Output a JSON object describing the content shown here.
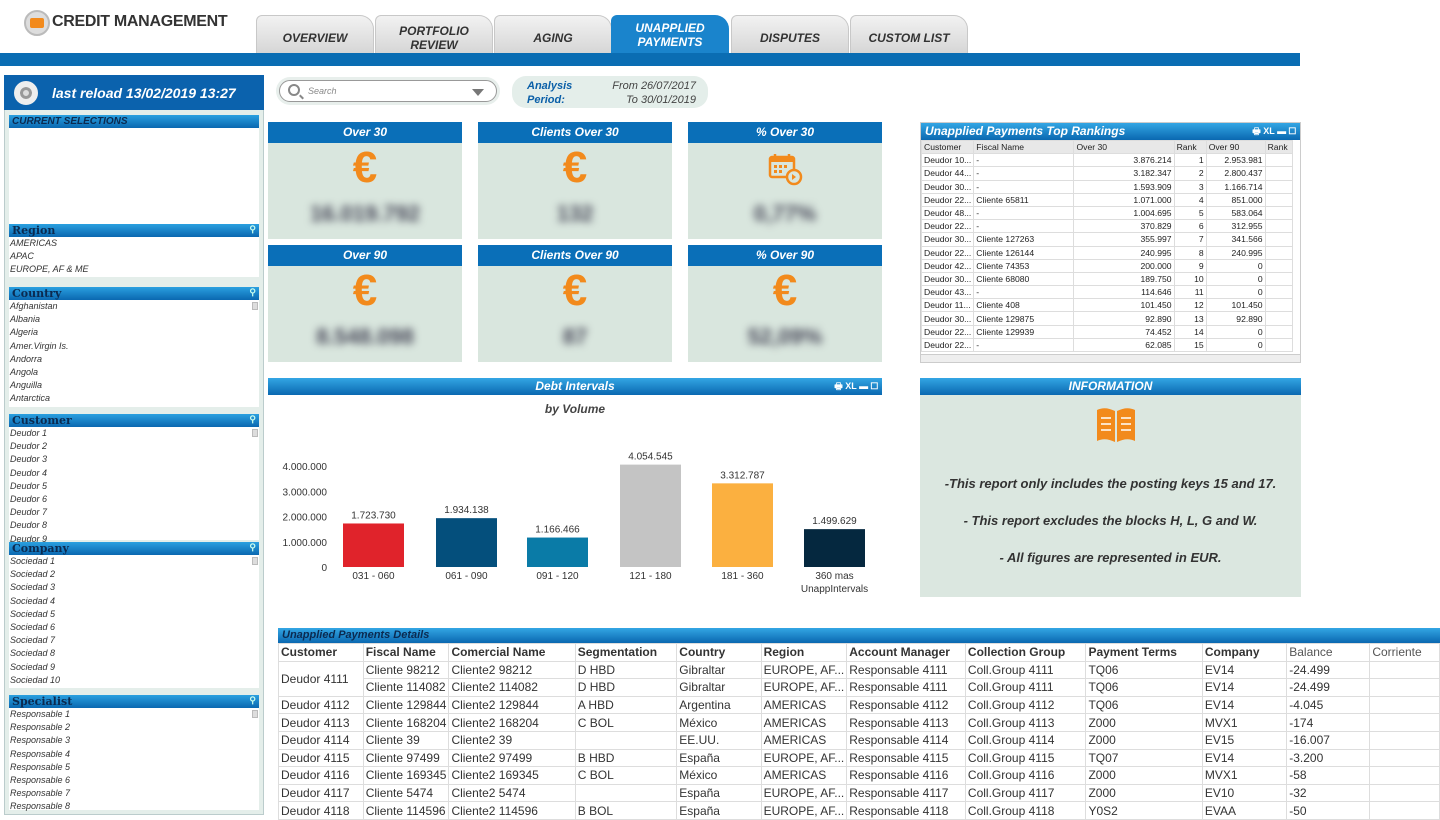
{
  "app": {
    "title": "CREDIT MANAGEMENT"
  },
  "tabs": [
    {
      "label": "OVERVIEW"
    },
    {
      "label": "PORTFOLIO REVIEW"
    },
    {
      "label": "AGING"
    },
    {
      "label": "UNAPPLIED PAYMENTS",
      "active": true
    },
    {
      "label": "DISPUTES"
    },
    {
      "label": "CUSTOM LIST"
    }
  ],
  "reload": {
    "label": "last reload 13/02/2019 13:27"
  },
  "listboxes": [
    {
      "title": "CURRENT SELECTIONS",
      "items": []
    },
    {
      "title": "Region",
      "items": [
        "AMERICAS",
        "APAC",
        "EUROPE, AF & ME"
      ]
    },
    {
      "title": "Country",
      "items": [
        "Afghanistan",
        "Albania",
        "Algeria",
        "Amer.Virgin Is.",
        "Andorra",
        "Angola",
        "Anguilla",
        "Antarctica"
      ]
    },
    {
      "title": "Customer",
      "items": [
        "Deudor 1",
        "Deudor 2",
        "Deudor 3",
        "Deudor 4",
        "Deudor 5",
        "Deudor 6",
        "Deudor 7",
        "Deudor 8",
        "Deudor 9"
      ]
    },
    {
      "title": "Company",
      "items": [
        "Sociedad 1",
        "Sociedad 2",
        "Sociedad 3",
        "Sociedad 4",
        "Sociedad 5",
        "Sociedad 6",
        "Sociedad 7",
        "Sociedad 8",
        "Sociedad 9",
        "Sociedad 10"
      ]
    },
    {
      "title": "Specialist",
      "items": [
        "Responsable 1",
        "Responsable 2",
        "Responsable 3",
        "Responsable 4",
        "Responsable 5",
        "Responsable 6",
        "Responsable 7",
        "Responsable 8"
      ]
    }
  ],
  "search": {
    "placeholder": "Search"
  },
  "period": {
    "label1": "Analysis",
    "label2": "Period:",
    "from": "From 26/07/2017",
    "to": "To 30/01/2019"
  },
  "kpis": [
    {
      "title": "Over 30",
      "icon": "euro-icon",
      "value": "16.019.792"
    },
    {
      "title": "Clients Over 30",
      "icon": "euro-icon",
      "value": "132"
    },
    {
      "title": "% Over 30",
      "icon": "calendar-icon",
      "value": "0,77%"
    },
    {
      "title": "Over 90",
      "icon": "euro-icon",
      "value": "8.548.098"
    },
    {
      "title": "Clients Over 90",
      "icon": "euro-icon",
      "value": "87"
    },
    {
      "title": "% Over 90",
      "icon": "euro-icon",
      "value": "52,09%"
    }
  ],
  "chart_data": {
    "type": "bar",
    "title": "Debt Intervals",
    "subtitle": "by Volume",
    "xlabel": "UnappIntervals",
    "ylabel": "",
    "categories": [
      "031 - 060",
      "061 - 090",
      "091 - 120",
      "121 - 180",
      "181 - 360",
      "360   mas"
    ],
    "values": [
      1723730,
      1934138,
      1166466,
      4054545,
      3312787,
      1499629
    ],
    "value_labels": [
      "1.723.730",
      "1.934.138",
      "1.166.466",
      "4.054.545",
      "3.312.787",
      "1.499.629"
    ],
    "colors": [
      "#e0232b",
      "#044f7c",
      "#0a7ba7",
      "#c4c4c4",
      "#fbb040",
      "#05283f"
    ],
    "yticks": [
      0,
      1000000,
      2000000,
      3000000,
      4000000
    ],
    "ytick_labels": [
      "0",
      "1.000.000",
      "2.000.000",
      "3.000.000",
      "4.000.000"
    ],
    "ylim": [
      0,
      4000000
    ],
    "grid": false
  },
  "panel_controls": "🖶 XL ▬ ☐",
  "rankings": {
    "title": "Unapplied Payments Top Rankings",
    "columns": [
      "Customer",
      "Fiscal Name",
      "Over 30",
      "Rank",
      "Over 90",
      "Rank"
    ],
    "rows": [
      [
        "Deudor 10...",
        "-",
        "3.876.214",
        "1",
        "2.953.981",
        ""
      ],
      [
        "Deudor 44...",
        "-",
        "3.182.347",
        "2",
        "2.800.437",
        ""
      ],
      [
        "Deudor 30...",
        "-",
        "1.593.909",
        "3",
        "1.166.714",
        ""
      ],
      [
        "Deudor 22...",
        "Cliente 65811",
        "1.071.000",
        "4",
        "851.000",
        ""
      ],
      [
        "Deudor 48...",
        "-",
        "1.004.695",
        "5",
        "583.064",
        ""
      ],
      [
        "Deudor 22...",
        "-",
        "370.829",
        "6",
        "312.955",
        ""
      ],
      [
        "Deudor 30...",
        "Cliente 127263",
        "355.997",
        "7",
        "341.566",
        ""
      ],
      [
        "Deudor 22...",
        "Cliente 126144",
        "240.995",
        "8",
        "240.995",
        ""
      ],
      [
        "Deudor 42...",
        "Cliente 74353",
        "200.000",
        "9",
        "0",
        ""
      ],
      [
        "Deudor 30...",
        "Cliente 68080",
        "189.750",
        "10",
        "0",
        ""
      ],
      [
        "Deudor 43...",
        "-",
        "114.646",
        "11",
        "0",
        ""
      ],
      [
        "Deudor 11...",
        "Cliente 408",
        "101.450",
        "12",
        "101.450",
        ""
      ],
      [
        "Deudor 30...",
        "Cliente 129875",
        "92.890",
        "13",
        "92.890",
        ""
      ],
      [
        "Deudor 22...",
        "Cliente 129939",
        "74.452",
        "14",
        "0",
        ""
      ],
      [
        "Deudor 22...",
        "-",
        "62.085",
        "15",
        "0",
        ""
      ]
    ]
  },
  "info": {
    "title": "INFORMATION",
    "lines": [
      "-This report only includes the posting keys 15 and 17.",
      "- This report excludes the blocks H, L, G and W.",
      "- All figures are represented in EUR."
    ]
  },
  "details": {
    "title": "Unapplied Payments Details",
    "columns": [
      "Customer",
      "Fiscal Name",
      "Comercial Name",
      "Segmentation",
      "Country",
      "Region",
      "Account Manager",
      "Collection Group",
      "Payment Terms",
      "Company",
      "Balance",
      "Corriente"
    ],
    "rows": [
      [
        "Deudor 4111",
        "Cliente 98212",
        "Cliente2 98212",
        "D HBD",
        "Gibraltar",
        "EUROPE, AF...",
        "Responsable 4111",
        "Coll.Group 4111",
        "TQ06",
        "EV14",
        "-24.499",
        ""
      ],
      [
        "",
        "Cliente 114082",
        "Cliente2 114082",
        "D HBD",
        "Gibraltar",
        "EUROPE, AF...",
        "Responsable 4111",
        "Coll.Group 4111",
        "TQ06",
        "EV14",
        "-24.499",
        ""
      ],
      [
        "Deudor 4112",
        "Cliente 129844",
        "Cliente2 129844",
        "A HBD",
        "Argentina",
        "AMERICAS",
        "Responsable 4112",
        "Coll.Group 4112",
        "TQ06",
        "EV14",
        "-4.045",
        ""
      ],
      [
        "Deudor 4113",
        "Cliente 168204",
        "Cliente2 168204",
        "C BOL",
        "México",
        "AMERICAS",
        "Responsable 4113",
        "Coll.Group 4113",
        "Z000",
        "MVX1",
        "-174",
        ""
      ],
      [
        "Deudor 4114",
        "Cliente 39",
        "Cliente2 39",
        "",
        "EE.UU.",
        "AMERICAS",
        "Responsable 4114",
        "Coll.Group 4114",
        "Z000",
        "EV15",
        "-16.007",
        ""
      ],
      [
        "Deudor 4115",
        "Cliente 97499",
        "Cliente2 97499",
        "B HBD",
        "España",
        "EUROPE, AF...",
        "Responsable 4115",
        "Coll.Group 4115",
        "TQ07",
        "EV14",
        "-3.200",
        ""
      ],
      [
        "Deudor 4116",
        "Cliente 169345",
        "Cliente2 169345",
        "C BOL",
        "México",
        "AMERICAS",
        "Responsable 4116",
        "Coll.Group 4116",
        "Z000",
        "MVX1",
        "-58",
        ""
      ],
      [
        "Deudor 4117",
        "Cliente 5474",
        "Cliente2 5474",
        "",
        "España",
        "EUROPE, AF...",
        "Responsable 4117",
        "Coll.Group 4117",
        "Z000",
        "EV10",
        "-32",
        ""
      ],
      [
        "Deudor 4118",
        "Cliente 114596",
        "Cliente2 114596",
        "B BOL",
        "España",
        "EUROPE, AF...",
        "Responsable 4118",
        "Coll.Group 4118",
        "Y0S2",
        "EVAA",
        "-50",
        ""
      ]
    ]
  }
}
